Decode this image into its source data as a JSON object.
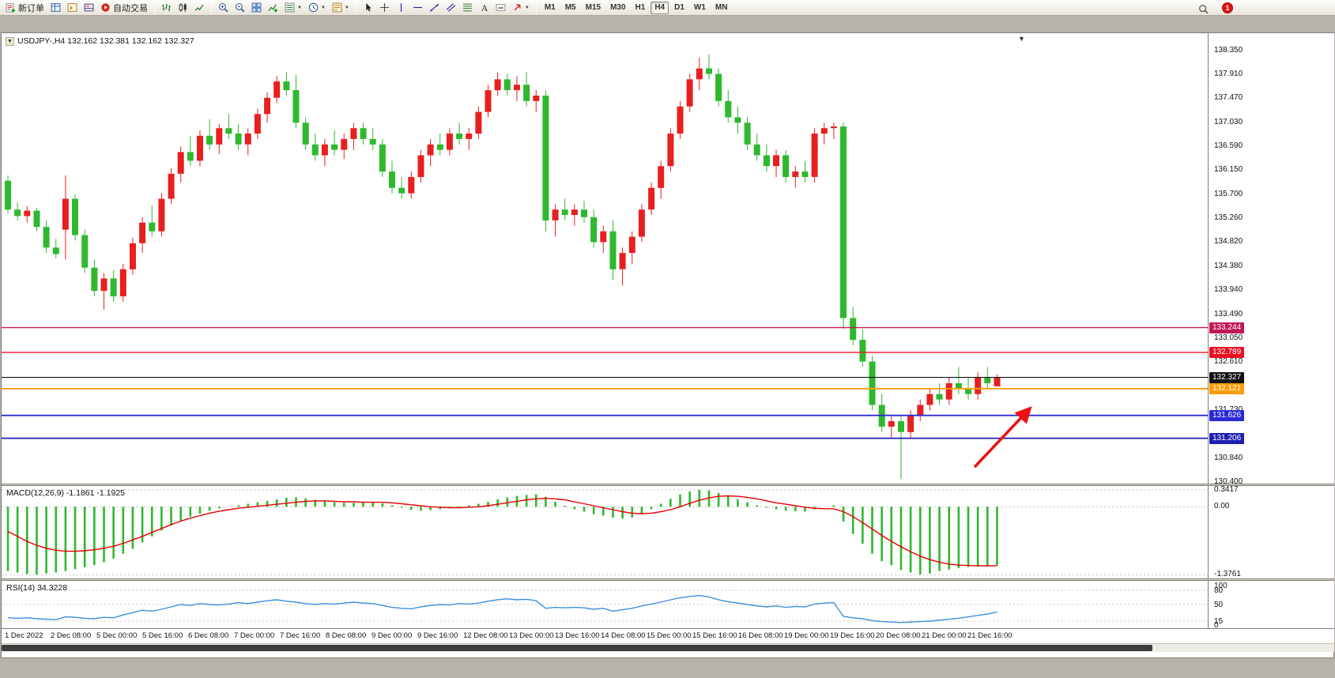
{
  "toolbar": {
    "groups": [
      {
        "items": [
          {
            "name": "new-order",
            "icon": "new-order",
            "label": "新订单"
          },
          {
            "name": "market-watch",
            "icon": "market-watch"
          },
          {
            "name": "navigator",
            "icon": "navigator"
          },
          {
            "name": "terminal",
            "icon": "terminal"
          },
          {
            "name": "auto-trading",
            "icon": "autotrade",
            "label": "自动交易"
          }
        ]
      },
      {
        "items": [
          {
            "name": "bar-chart-mode",
            "icon": "bars"
          },
          {
            "name": "candlestick-mode",
            "icon": "candles"
          },
          {
            "name": "line-chart-mode",
            "icon": "line-chart"
          }
        ]
      },
      {
        "items": [
          {
            "name": "zoom-in",
            "icon": "zoom-in"
          },
          {
            "name": "zoom-out",
            "icon": "zoom-out"
          },
          {
            "name": "tile-windows",
            "icon": "tile-windows"
          },
          {
            "name": "indicators",
            "icon": "indicators"
          },
          {
            "name": "indicator-list",
            "icon": "indicator-list",
            "caret": true
          },
          {
            "name": "periods",
            "icon": "periods",
            "caret": true
          },
          {
            "name": "templates",
            "icon": "templates",
            "caret": true
          }
        ]
      },
      {
        "items": [
          {
            "name": "cursor",
            "icon": "cursor"
          },
          {
            "name": "crosshair",
            "icon": "crosshair"
          },
          {
            "name": "vertical-line",
            "icon": "vline"
          },
          {
            "name": "horizontal-line",
            "icon": "hline"
          },
          {
            "name": "trendline",
            "icon": "trendline"
          },
          {
            "name": "equidistant-channel",
            "icon": "channel"
          },
          {
            "name": "fibonacci",
            "icon": "fibonacci"
          },
          {
            "name": "text",
            "icon": "text"
          },
          {
            "name": "text-label",
            "icon": "text-label"
          },
          {
            "name": "arrows",
            "icon": "arrows",
            "caret": true
          }
        ]
      }
    ],
    "timeframes": [
      "M1",
      "M5",
      "M15",
      "M30",
      "H1",
      "H4",
      "D1",
      "W1",
      "MN"
    ],
    "active_timeframe": "H4",
    "notification_badge": "1"
  },
  "chart_window": {
    "title": "USDJPY-,H4 132.162 132.381 132.162 132.327",
    "symbol": "USDJPY-",
    "period": "H4",
    "ohlc": {
      "open": "132.162",
      "high": "132.381",
      "low": "132.162",
      "close": "132.327"
    }
  },
  "indicators": {
    "macd_label": "MACD(12,26,9) -1.1861 -1.1925",
    "rsi_label": "RSI(14) 34.3228"
  },
  "axes": {
    "price_labels": [
      {
        "text": "138.350",
        "value": 138.35
      },
      {
        "text": "137.910",
        "value": 137.91
      },
      {
        "text": "137.470",
        "value": 137.47
      },
      {
        "text": "137.030",
        "value": 137.03
      },
      {
        "text": "136.590",
        "value": 136.59
      },
      {
        "text": "136.150",
        "value": 136.15
      },
      {
        "text": "135.700",
        "value": 135.7
      },
      {
        "text": "135.260",
        "value": 135.26
      },
      {
        "text": "134.820",
        "value": 134.82
      },
      {
        "text": "134.380",
        "value": 134.38
      },
      {
        "text": "133.940",
        "value": 133.94
      },
      {
        "text": "133.490",
        "value": 133.49
      },
      {
        "text": "133.050",
        "value": 133.05
      },
      {
        "text": "132.610",
        "value": 132.61
      },
      {
        "text": "131.730",
        "value": 131.73
      },
      {
        "text": "130.840",
        "value": 130.84
      },
      {
        "text": "130.400",
        "value": 130.4
      }
    ],
    "macd_labels": [
      {
        "text": "0.3417",
        "value": 0.3417
      },
      {
        "text": "0.00",
        "value": 0
      },
      {
        "text": "-1.3761",
        "value": -1.3761
      }
    ],
    "rsi_labels": [
      {
        "text": "100",
        "value": 100
      },
      {
        "text": "80",
        "value": 80
      },
      {
        "text": "50",
        "value": 50
      },
      {
        "text": "15",
        "value": 15
      },
      {
        "text": "0",
        "value": 0
      }
    ],
    "time_labels": [
      "1 Dec 2022",
      "2 Dec 08:00",
      "5 Dec 00:00",
      "5 Dec 16:00",
      "6 Dec 08:00",
      "7 Dec 00:00",
      "7 Dec 16:00",
      "8 Dec 08:00",
      "9 Dec 00:00",
      "9 Dec 16:00",
      "12 Dec 08:00",
      "13 Dec 00:00",
      "13 Dec 16:00",
      "14 Dec 08:00",
      "15 Dec 00:00",
      "15 Dec 16:00",
      "16 Dec 08:00",
      "19 Dec 00:00",
      "19 Dec 16:00",
      "20 Dec 08:00",
      "21 Dec 00:00",
      "21 Dec 16:00"
    ]
  },
  "chart_data": {
    "type": "candlestick",
    "title": "USDJPY- H4",
    "price_range": [
      130.37,
      138.67
    ],
    "colors": {
      "up": "#e62020",
      "down": "#2eb82e"
    },
    "candles": [
      [
        135.95,
        136.05,
        135.35,
        135.42
      ],
      [
        135.42,
        135.55,
        135.22,
        135.3
      ],
      [
        135.3,
        135.48,
        135.18,
        135.4
      ],
      [
        135.4,
        135.45,
        135.02,
        135.1
      ],
      [
        135.1,
        135.22,
        134.62,
        134.72
      ],
      [
        134.72,
        134.88,
        134.52,
        134.6
      ],
      [
        135.05,
        136.05,
        134.5,
        135.62
      ],
      [
        135.62,
        135.7,
        134.85,
        134.95
      ],
      [
        134.95,
        135.05,
        134.25,
        134.35
      ],
      [
        134.35,
        134.5,
        133.82,
        133.92
      ],
      [
        133.92,
        134.25,
        133.58,
        134.15
      ],
      [
        134.15,
        134.3,
        133.72,
        133.82
      ],
      [
        133.82,
        134.42,
        133.72,
        134.32
      ],
      [
        134.32,
        134.9,
        134.22,
        134.8
      ],
      [
        134.8,
        135.28,
        134.62,
        135.18
      ],
      [
        135.18,
        135.5,
        134.92,
        135.02
      ],
      [
        135.02,
        135.72,
        134.92,
        135.62
      ],
      [
        135.62,
        136.18,
        135.52,
        136.08
      ],
      [
        136.08,
        136.58,
        135.92,
        136.48
      ],
      [
        136.48,
        136.78,
        136.22,
        136.32
      ],
      [
        136.32,
        136.88,
        136.22,
        136.78
      ],
      [
        136.78,
        137.08,
        136.52,
        136.62
      ],
      [
        136.62,
        137.0,
        136.45,
        136.92
      ],
      [
        136.92,
        137.18,
        136.72,
        136.82
      ],
      [
        136.82,
        137.0,
        136.52,
        136.62
      ],
      [
        136.62,
        136.92,
        136.42,
        136.82
      ],
      [
        136.82,
        137.28,
        136.72,
        137.18
      ],
      [
        137.18,
        137.58,
        137.02,
        137.48
      ],
      [
        137.48,
        137.88,
        137.38,
        137.78
      ],
      [
        137.78,
        137.95,
        137.52,
        137.62
      ],
      [
        137.62,
        137.9,
        136.92,
        137.02
      ],
      [
        137.02,
        137.12,
        136.52,
        136.62
      ],
      [
        136.62,
        136.82,
        136.32,
        136.42
      ],
      [
        136.42,
        136.72,
        136.22,
        136.62
      ],
      [
        136.62,
        136.88,
        136.42,
        136.52
      ],
      [
        136.52,
        136.82,
        136.35,
        136.72
      ],
      [
        136.72,
        137.02,
        136.52,
        136.92
      ],
      [
        136.92,
        137.02,
        136.62,
        136.72
      ],
      [
        136.72,
        136.92,
        136.52,
        136.62
      ],
      [
        136.62,
        136.72,
        136.02,
        136.12
      ],
      [
        136.12,
        136.32,
        135.72,
        135.82
      ],
      [
        135.82,
        136.02,
        135.62,
        135.72
      ],
      [
        135.72,
        136.12,
        135.62,
        136.02
      ],
      [
        136.02,
        136.52,
        135.92,
        136.42
      ],
      [
        136.42,
        136.72,
        136.22,
        136.62
      ],
      [
        136.62,
        136.82,
        136.42,
        136.52
      ],
      [
        136.52,
        136.92,
        136.42,
        136.82
      ],
      [
        136.82,
        137.02,
        136.62,
        136.72
      ],
      [
        136.72,
        136.92,
        136.52,
        136.82
      ],
      [
        136.82,
        137.32,
        136.72,
        137.22
      ],
      [
        137.22,
        137.72,
        137.12,
        137.62
      ],
      [
        137.62,
        137.95,
        137.52,
        137.82
      ],
      [
        137.82,
        137.92,
        137.52,
        137.62
      ],
      [
        137.62,
        137.88,
        137.42,
        137.72
      ],
      [
        137.72,
        137.95,
        137.32,
        137.42
      ],
      [
        137.42,
        137.62,
        137.22,
        137.52
      ],
      [
        137.52,
        137.62,
        135.02,
        135.22
      ],
      [
        135.22,
        135.52,
        134.92,
        135.42
      ],
      [
        135.42,
        135.62,
        135.22,
        135.32
      ],
      [
        135.32,
        135.52,
        135.12,
        135.42
      ],
      [
        135.42,
        135.58,
        135.18,
        135.28
      ],
      [
        135.28,
        135.42,
        134.72,
        134.82
      ],
      [
        134.82,
        135.12,
        134.62,
        135.02
      ],
      [
        135.02,
        135.22,
        134.12,
        134.32
      ],
      [
        134.32,
        134.72,
        134.02,
        134.62
      ],
      [
        134.62,
        135.02,
        134.42,
        134.92
      ],
      [
        134.92,
        135.52,
        134.82,
        135.42
      ],
      [
        135.42,
        135.92,
        135.32,
        135.82
      ],
      [
        135.82,
        136.32,
        135.62,
        136.22
      ],
      [
        136.22,
        136.92,
        136.12,
        136.82
      ],
      [
        136.82,
        137.42,
        136.72,
        137.32
      ],
      [
        137.32,
        137.92,
        137.22,
        137.82
      ],
      [
        137.82,
        138.22,
        137.62,
        138.02
      ],
      [
        138.02,
        138.28,
        137.82,
        137.92
      ],
      [
        137.92,
        138.02,
        137.32,
        137.42
      ],
      [
        137.42,
        137.62,
        137.02,
        137.12
      ],
      [
        137.12,
        137.32,
        136.82,
        137.02
      ],
      [
        137.02,
        137.12,
        136.52,
        136.62
      ],
      [
        136.62,
        136.82,
        136.32,
        136.42
      ],
      [
        136.42,
        136.62,
        136.12,
        136.22
      ],
      [
        136.22,
        136.52,
        136.02,
        136.42
      ],
      [
        136.42,
        136.52,
        135.92,
        136.02
      ],
      [
        136.02,
        136.22,
        135.82,
        136.12
      ],
      [
        136.12,
        136.32,
        135.92,
        136.02
      ],
      [
        136.02,
        136.92,
        135.92,
        136.82
      ],
      [
        136.82,
        137.02,
        136.62,
        136.92
      ],
      [
        136.92,
        137.02,
        136.72,
        136.95
      ],
      [
        136.95,
        137.02,
        133.22,
        133.42
      ],
      [
        133.42,
        133.62,
        132.92,
        133.02
      ],
      [
        133.02,
        133.22,
        132.52,
        132.62
      ],
      [
        132.62,
        132.72,
        131.72,
        131.82
      ],
      [
        131.82,
        132.02,
        131.32,
        131.42
      ],
      [
        131.42,
        131.62,
        131.22,
        131.52
      ],
      [
        131.52,
        131.62,
        130.45,
        131.32
      ],
      [
        131.32,
        131.72,
        131.22,
        131.62
      ],
      [
        131.62,
        131.92,
        131.52,
        131.82
      ],
      [
        131.82,
        132.12,
        131.72,
        132.02
      ],
      [
        132.02,
        132.22,
        131.82,
        131.92
      ],
      [
        131.92,
        132.32,
        131.82,
        132.22
      ],
      [
        132.22,
        132.52,
        132.02,
        132.12
      ],
      [
        132.12,
        132.32,
        131.92,
        132.02
      ],
      [
        132.02,
        132.42,
        131.92,
        132.32
      ],
      [
        132.32,
        132.52,
        132.12,
        132.22
      ],
      [
        132.162,
        132.381,
        132.162,
        132.327
      ]
    ],
    "levels": [
      {
        "price": 133.244,
        "label": "133.244",
        "color": "#c21858",
        "width": 1.4
      },
      {
        "price": 132.789,
        "label": "132.789",
        "color": "#e81123",
        "width": 1.4
      },
      {
        "price": 132.327,
        "label": "132.327",
        "color": "#111111",
        "width": 1.1,
        "current": true
      },
      {
        "price": 132.121,
        "label": "132.121",
        "color": "#ff9c00",
        "width": 1.8
      },
      {
        "price": 131.626,
        "label": "131.626",
        "color": "#2a2ad4",
        "width": 1.8
      },
      {
        "price": 131.206,
        "label": "131.206",
        "color": "#2020b0",
        "width": 1.8
      }
    ],
    "macd": {
      "range": [
        -1.45,
        0.42
      ],
      "hist_color": "#2eb82e",
      "signal_color": "#e60000",
      "histogram": [
        -1.3,
        -1.33,
        -1.36,
        -1.37,
        -1.35,
        -1.33,
        -1.3,
        -1.26,
        -1.22,
        -1.18,
        -1.12,
        -1.05,
        -0.95,
        -0.85,
        -0.72,
        -0.6,
        -0.48,
        -0.38,
        -0.28,
        -0.2,
        -0.14,
        -0.08,
        -0.03,
        0.0,
        0.03,
        0.06,
        0.09,
        0.12,
        0.15,
        0.18,
        0.19,
        0.17,
        0.14,
        0.11,
        0.09,
        0.08,
        0.08,
        0.09,
        0.09,
        0.07,
        0.03,
        -0.02,
        -0.06,
        -0.08,
        -0.07,
        -0.05,
        -0.02,
        0.01,
        0.03,
        0.06,
        0.1,
        0.15,
        0.19,
        0.22,
        0.24,
        0.25,
        0.2,
        0.1,
        0.02,
        -0.05,
        -0.1,
        -0.15,
        -0.18,
        -0.22,
        -0.24,
        -0.22,
        -0.15,
        -0.05,
        0.06,
        0.16,
        0.25,
        0.31,
        0.34,
        0.33,
        0.28,
        0.22,
        0.15,
        0.09,
        0.03,
        -0.02,
        -0.05,
        -0.08,
        -0.09,
        -0.1,
        -0.05,
        0.0,
        0.03,
        -0.3,
        -0.55,
        -0.75,
        -0.95,
        -1.1,
        -1.18,
        -1.28,
        -1.33,
        -1.37,
        -1.35,
        -1.3,
        -1.27,
        -1.24,
        -1.22,
        -1.21,
        -1.2,
        -1.1861
      ],
      "signal": [
        -0.5,
        -0.6,
        -0.7,
        -0.78,
        -0.84,
        -0.88,
        -0.9,
        -0.9,
        -0.89,
        -0.87,
        -0.84,
        -0.8,
        -0.74,
        -0.67,
        -0.6,
        -0.52,
        -0.44,
        -0.36,
        -0.29,
        -0.23,
        -0.18,
        -0.13,
        -0.09,
        -0.06,
        -0.03,
        -0.01,
        0.01,
        0.03,
        0.05,
        0.07,
        0.09,
        0.11,
        0.12,
        0.12,
        0.11,
        0.1,
        0.1,
        0.09,
        0.09,
        0.09,
        0.08,
        0.06,
        0.04,
        0.02,
        0.0,
        -0.01,
        -0.02,
        -0.02,
        -0.01,
        0.0,
        0.02,
        0.05,
        0.08,
        0.11,
        0.14,
        0.16,
        0.17,
        0.16,
        0.14,
        0.1,
        0.06,
        0.02,
        -0.02,
        -0.06,
        -0.1,
        -0.13,
        -0.14,
        -0.13,
        -0.1,
        -0.06,
        0.0,
        0.07,
        0.13,
        0.18,
        0.21,
        0.22,
        0.21,
        0.19,
        0.16,
        0.12,
        0.08,
        0.05,
        0.02,
        -0.01,
        -0.03,
        -0.04,
        -0.04,
        -0.1,
        -0.2,
        -0.32,
        -0.45,
        -0.58,
        -0.7,
        -0.81,
        -0.91,
        -1.0,
        -1.07,
        -1.12,
        -1.16,
        -1.18,
        -1.19,
        -1.193,
        -1.194,
        -1.1925
      ]
    },
    "rsi": {
      "range": [
        0,
        100
      ],
      "levels": [
        80,
        50,
        15
      ],
      "line_color": "#3e8ede",
      "values": [
        22,
        21,
        22,
        20,
        19,
        18,
        24,
        23,
        21,
        20,
        23,
        22,
        28,
        33,
        38,
        36,
        40,
        45,
        50,
        48,
        52,
        50,
        49,
        51,
        54,
        52,
        55,
        58,
        60,
        57,
        55,
        52,
        50,
        52,
        51,
        53,
        55,
        53,
        52,
        48,
        44,
        42,
        41,
        45,
        48,
        50,
        49,
        52,
        51,
        53,
        57,
        60,
        62,
        60,
        61,
        58,
        42,
        44,
        43,
        44,
        43,
        40,
        42,
        36,
        39,
        42,
        47,
        51,
        55,
        60,
        64,
        67,
        69,
        66,
        60,
        56,
        53,
        50,
        47,
        45,
        47,
        44,
        46,
        45,
        51,
        53,
        54,
        25,
        22,
        20,
        16,
        14,
        13,
        12,
        13,
        14,
        15,
        17,
        19,
        21,
        24,
        27,
        30,
        34.32
      ]
    }
  },
  "annotations": {
    "arrow": {
      "color": "#ee1111"
    }
  }
}
